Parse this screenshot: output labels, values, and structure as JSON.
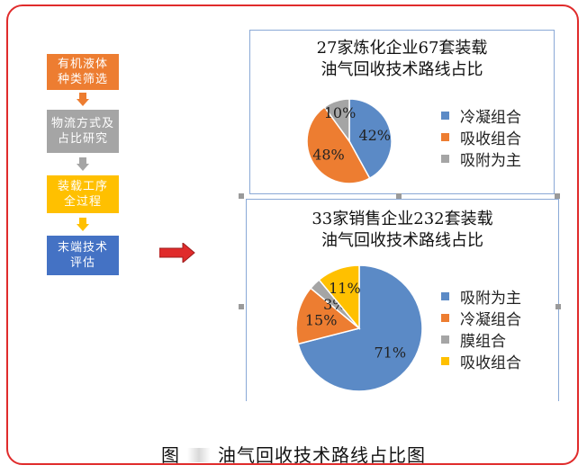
{
  "flow": {
    "steps": [
      {
        "label": "有机液体\n种类筛选",
        "bg": "#ed7d31",
        "color": "#ffffff"
      },
      {
        "label": "物流方式及\n占比研究",
        "bg": "#a5a5a5",
        "color": "#ffffff"
      },
      {
        "label": "装载工序\n全过程",
        "bg": "#ffc000",
        "color": "#ffffff"
      },
      {
        "label": "末端技术\n评估",
        "bg": "#4472c4",
        "color": "#ffffff"
      }
    ],
    "arrow_colors": [
      "#ed7d31",
      "#a5a5a5",
      "#ffc000"
    ],
    "right_arrow_color": "#e02b2b"
  },
  "chart_data": [
    {
      "type": "pie",
      "title": "27家炼化企业67套装载\n油气回收技术路线占比",
      "slices": [
        {
          "label": "冷凝组合",
          "value": 42,
          "color": "#5b8ac6"
        },
        {
          "label": "吸收组合",
          "value": 48,
          "color": "#ed7d31"
        },
        {
          "label": "吸附为主",
          "value": 10,
          "color": "#a5a5a5"
        }
      ],
      "legend_position": "right"
    },
    {
      "type": "pie",
      "title": "33家销售企业232套装载\n油气回收技术路线占比",
      "slices": [
        {
          "label": "吸附为主",
          "value": 71,
          "color": "#5b8ac6"
        },
        {
          "label": "冷凝组合",
          "value": 15,
          "color": "#ed7d31"
        },
        {
          "label": "膜组合",
          "value": 3,
          "color": "#a5a5a5"
        },
        {
          "label": "吸收组合",
          "value": 11,
          "color": "#ffc000"
        }
      ],
      "legend_position": "right"
    }
  ],
  "caption": {
    "prefix": "图",
    "text": "油气回收技术路线占比图"
  }
}
